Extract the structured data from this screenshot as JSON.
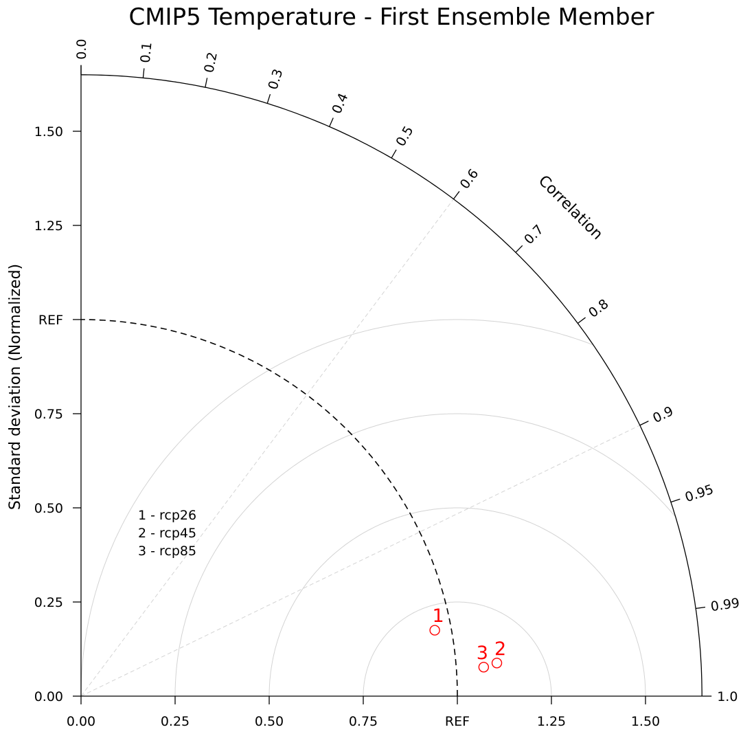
{
  "chart_data": {
    "type": "taylor",
    "title": "CMIP5 Temperature - First Ensemble Member",
    "ylabel": "Standard deviation (Normalized)",
    "correlation_label": "Correlation",
    "ref_label": "REF",
    "ref_std": 1.0,
    "std_max": 1.65,
    "std_ticks": [
      {
        "value": 0.0,
        "label": "0.00"
      },
      {
        "value": 0.25,
        "label": "0.25"
      },
      {
        "value": 0.5,
        "label": "0.50"
      },
      {
        "value": 0.75,
        "label": "0.75"
      },
      {
        "value": 1.0,
        "label": "REF"
      },
      {
        "value": 1.25,
        "label": "1.25"
      },
      {
        "value": 1.5,
        "label": "1.50"
      }
    ],
    "corr_ticks": [
      {
        "value": 0.0,
        "label": "0.0"
      },
      {
        "value": 0.1,
        "label": "0.1"
      },
      {
        "value": 0.2,
        "label": "0.2"
      },
      {
        "value": 0.3,
        "label": "0.3"
      },
      {
        "value": 0.4,
        "label": "0.4"
      },
      {
        "value": 0.5,
        "label": "0.5"
      },
      {
        "value": 0.6,
        "label": "0.6"
      },
      {
        "value": 0.7,
        "label": "0.7"
      },
      {
        "value": 0.8,
        "label": "0.8"
      },
      {
        "value": 0.9,
        "label": "0.9"
      },
      {
        "value": 0.95,
        "label": "0.95"
      },
      {
        "value": 0.99,
        "label": "0.99"
      },
      {
        "value": 1.0,
        "label": "1.0"
      }
    ],
    "corr_gridlines": [
      0.6,
      0.9
    ],
    "rms_circles": [
      0.25,
      0.5,
      0.75,
      1.0
    ],
    "points": [
      {
        "id": "1",
        "name": "rcp26",
        "x": 0.94,
        "y": 0.175
      },
      {
        "id": "2",
        "name": "rcp45",
        "x": 1.105,
        "y": 0.088
      },
      {
        "id": "3",
        "name": "rcp85",
        "x": 1.07,
        "y": 0.077
      }
    ],
    "legend": [
      "1 - rcp26",
      "2 - rcp45",
      "3 - rcp85"
    ],
    "point_color": "#ff0000",
    "grid_color": "#d3d3d3",
    "legend_position": "inside-left"
  }
}
